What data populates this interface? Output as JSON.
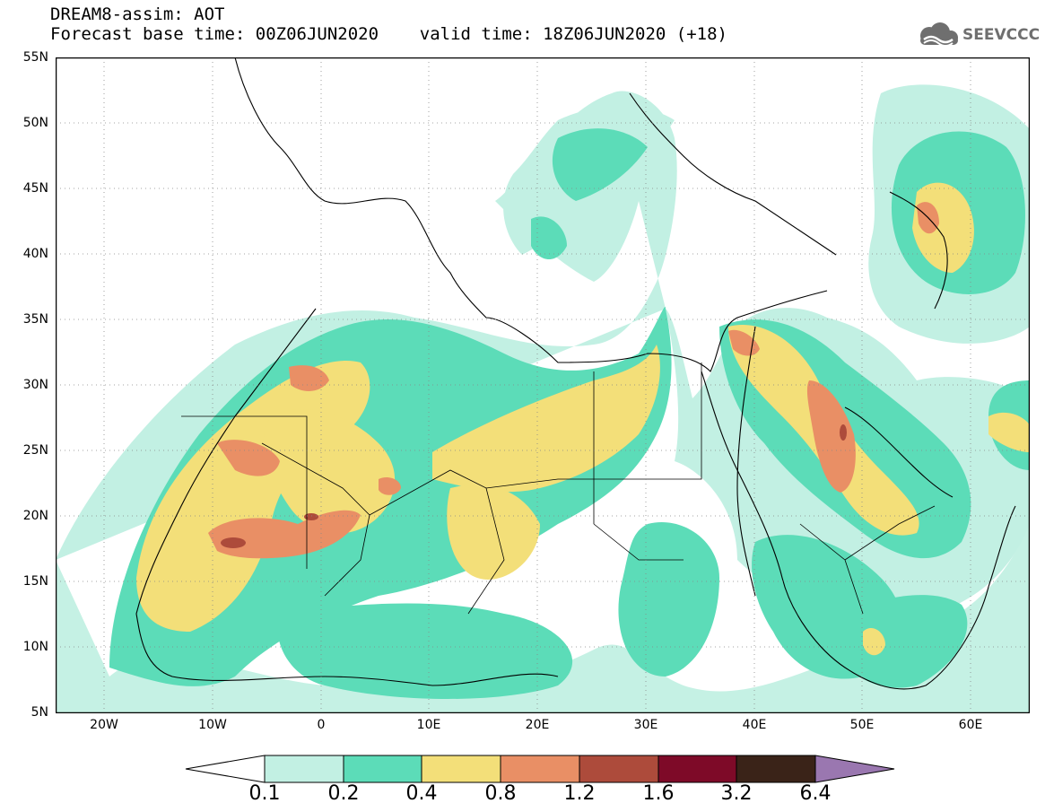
{
  "header": {
    "title_line1": "DREAM8-assim: AOT",
    "title_line2": "Forecast base time: 00Z06JUN2020    valid time: 18Z06JUN2020 (+18)"
  },
  "logo": {
    "text": "SEEVCCC",
    "icon": "cloud-logo-icon",
    "color": "#6f6f6f"
  },
  "map": {
    "projection": "lat-lon",
    "lon_range": [
      -25,
      65
    ],
    "lat_range": [
      5,
      55
    ],
    "lat_ticks": [
      "55N",
      "50N",
      "45N",
      "40N",
      "35N",
      "30N",
      "25N",
      "20N",
      "15N",
      "10N",
      "5N"
    ],
    "lon_ticks": [
      "20W",
      "10W",
      "0",
      "10E",
      "20E",
      "30E",
      "40E",
      "50E",
      "60E"
    ],
    "grid": "dotted"
  },
  "legend": {
    "levels": [
      "0.1",
      "0.2",
      "0.4",
      "0.8",
      "1.2",
      "1.6",
      "3.2",
      "6.4"
    ],
    "colors": [
      "#ffffff",
      "#c2f0e3",
      "#5cdcb8",
      "#f3df79",
      "#e98f65",
      "#ad4b3b",
      "#7e0a28",
      "#3a2318",
      "#9a77b0"
    ]
  }
}
